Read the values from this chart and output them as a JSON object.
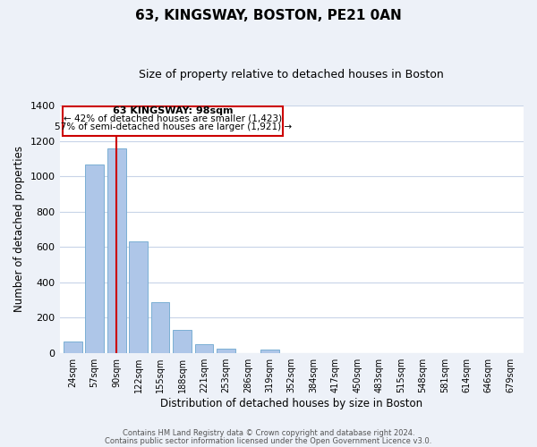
{
  "title": "63, KINGSWAY, BOSTON, PE21 0AN",
  "subtitle": "Size of property relative to detached houses in Boston",
  "xlabel": "Distribution of detached houses by size in Boston",
  "ylabel": "Number of detached properties",
  "bin_labels": [
    "24sqm",
    "57sqm",
    "90sqm",
    "122sqm",
    "155sqm",
    "188sqm",
    "221sqm",
    "253sqm",
    "286sqm",
    "319sqm",
    "352sqm",
    "384sqm",
    "417sqm",
    "450sqm",
    "483sqm",
    "515sqm",
    "548sqm",
    "581sqm",
    "614sqm",
    "646sqm",
    "679sqm"
  ],
  "bar_values": [
    65,
    1065,
    1155,
    630,
    285,
    130,
    48,
    22,
    0,
    20,
    0,
    0,
    0,
    0,
    0,
    0,
    0,
    0,
    0,
    0,
    0
  ],
  "bar_color": "#aec6e8",
  "bar_edge_color": "#7bafd4",
  "vline_x_index": 2,
  "vline_color": "#cc0000",
  "ylim": [
    0,
    1400
  ],
  "yticks": [
    0,
    200,
    400,
    600,
    800,
    1000,
    1200,
    1400
  ],
  "annotation_title": "63 KINGSWAY: 98sqm",
  "annotation_line1": "← 42% of detached houses are smaller (1,423)",
  "annotation_line2": "57% of semi-detached houses are larger (1,921) →",
  "annotation_box_color": "#ffffff",
  "annotation_box_edge": "#cc0000",
  "footer_line1": "Contains HM Land Registry data © Crown copyright and database right 2024.",
  "footer_line2": "Contains public sector information licensed under the Open Government Licence v3.0.",
  "background_color": "#edf1f8",
  "plot_bg_color": "#ffffff",
  "grid_color": "#c8d4e8"
}
